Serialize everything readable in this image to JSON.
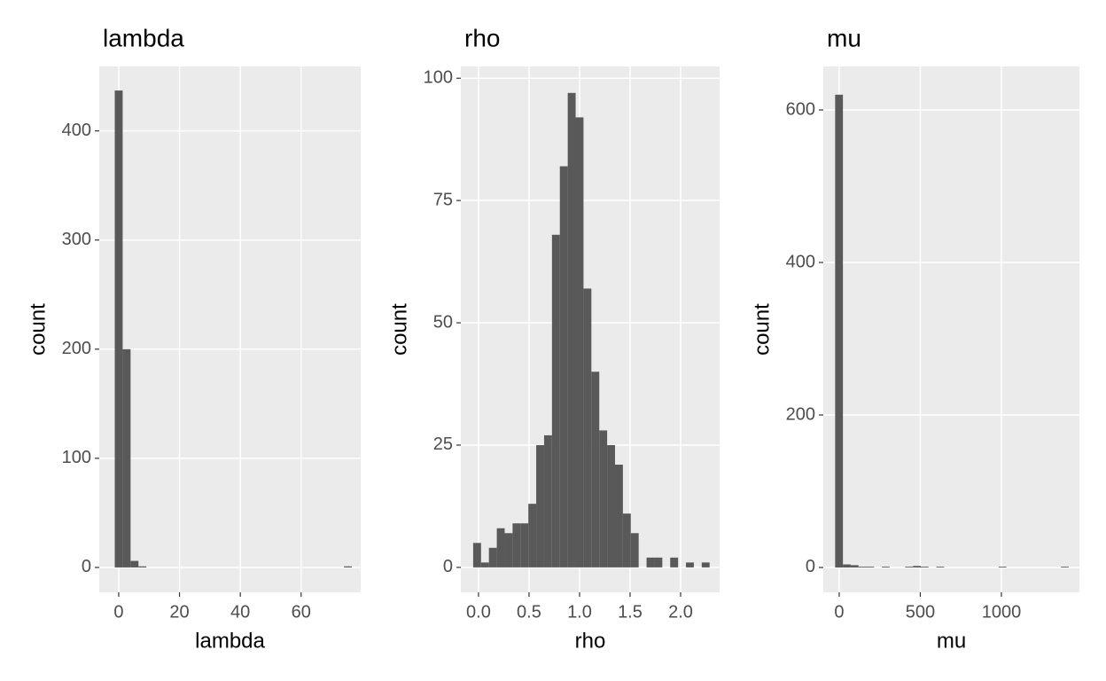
{
  "chart_data": [
    {
      "type": "histogram",
      "title": "lambda",
      "x_label": "lambda",
      "y_label": "count",
      "color": "#595959",
      "bins": [
        -1.3,
        1.3,
        3.9,
        6.5,
        9.1,
        11.7,
        14.3,
        16.9,
        19.5,
        22.1,
        24.7,
        27.3,
        29.9,
        32.5,
        35.1,
        37.7,
        40.3,
        42.9,
        45.5,
        48.1,
        50.7,
        53.3,
        55.9,
        58.5,
        61.1,
        63.7,
        66.3,
        68.9,
        71.5,
        74.1,
        76.7
      ],
      "values": [
        437,
        200,
        6,
        1,
        0,
        0,
        0,
        0,
        0,
        0,
        0,
        0,
        0,
        0,
        0,
        0,
        0,
        0,
        0,
        0,
        0,
        0,
        0,
        0,
        0,
        0,
        0,
        0,
        0,
        1
      ],
      "xlim": [
        -6.4,
        79.6
      ],
      "xticks": [
        0,
        20,
        40,
        60
      ],
      "ylim": [
        -22.8,
        459
      ],
      "yticks": [
        0,
        100,
        200,
        300,
        400
      ],
      "grid": true
    },
    {
      "type": "histogram",
      "title": "rho",
      "x_label": "rho",
      "y_label": "count",
      "color": "#595959",
      "bins": [
        -0.053,
        0.025,
        0.103,
        0.181,
        0.259,
        0.337,
        0.415,
        0.493,
        0.571,
        0.649,
        0.727,
        0.805,
        0.883,
        0.961,
        1.039,
        1.117,
        1.195,
        1.273,
        1.351,
        1.429,
        1.507,
        1.585,
        1.663,
        1.741,
        1.819,
        1.897,
        1.975,
        2.053,
        2.131,
        2.209,
        2.287
      ],
      "values": [
        5,
        1,
        4,
        8,
        7,
        9,
        9,
        13,
        25,
        27,
        68,
        82,
        97,
        92,
        57,
        40,
        28,
        25,
        21,
        11,
        7,
        0,
        2,
        2,
        0,
        2,
        0,
        1,
        0,
        1
      ],
      "xlim": [
        -0.175,
        2.386
      ],
      "xticks": [
        {
          "value": 0,
          "label": "0.0"
        },
        0.5,
        {
          "value": 1,
          "label": "1.0"
        },
        1.5,
        {
          "value": 2,
          "label": "2.0"
        }
      ],
      "ylim": [
        -5.1,
        102.4
      ],
      "yticks": [
        0,
        25,
        50,
        75,
        100
      ],
      "grid": true
    },
    {
      "type": "histogram",
      "title": "mu",
      "x_label": "mu",
      "y_label": "count",
      "color": "#595959",
      "bins": [
        -25,
        23,
        71,
        119,
        167,
        215,
        263,
        311,
        359,
        407,
        455,
        503,
        551,
        599,
        647,
        695,
        743,
        791,
        839,
        887,
        935,
        983,
        1031,
        1079,
        1127,
        1175,
        1223,
        1271,
        1319,
        1367,
        1415
      ],
      "values": [
        620,
        4,
        3,
        1,
        1,
        0,
        1,
        0,
        0,
        1,
        2,
        1,
        0,
        1,
        0,
        0,
        0,
        0,
        0,
        0,
        0,
        1,
        0,
        0,
        0,
        0,
        0,
        0,
        0,
        1
      ],
      "xlim": [
        -98,
        1481
      ],
      "xticks": [
        0,
        500,
        1000
      ],
      "ylim": [
        -32.6,
        657
      ],
      "yticks": [
        0,
        200,
        400,
        600
      ],
      "grid": true
    }
  ]
}
